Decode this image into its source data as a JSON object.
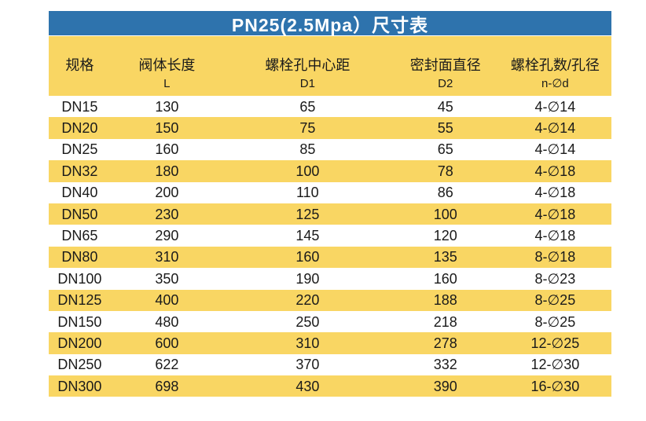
{
  "title_bar": {
    "text": "PN25(2.5Mpa）尺寸表"
  },
  "colors": {
    "title_bg": "#2e73ad",
    "title_text": "#ffffff",
    "stripe": "#f9d663",
    "row_white": "#ffffff",
    "text": "#1a1a1a",
    "page_bg": "#ffffff"
  },
  "table": {
    "columns": [
      {
        "label": "规格",
        "sub": ""
      },
      {
        "label": "阀体长度",
        "sub": "L"
      },
      {
        "label": "螺栓孔中心距",
        "sub": "D1"
      },
      {
        "label": "密封面直径",
        "sub": "D2"
      },
      {
        "label": "螺栓孔数/孔径",
        "sub": "n-∅d"
      }
    ],
    "rows": [
      [
        "DN15",
        "130",
        "65",
        "45",
        "4-∅14"
      ],
      [
        "DN20",
        "150",
        "75",
        "55",
        "4-∅14"
      ],
      [
        "DN25",
        "160",
        "85",
        "65",
        "4-∅14"
      ],
      [
        "DN32",
        "180",
        "100",
        "78",
        "4-∅18"
      ],
      [
        "DN40",
        "200",
        "110",
        "86",
        "4-∅18"
      ],
      [
        "DN50",
        "230",
        "125",
        "100",
        "4-∅18"
      ],
      [
        "DN65",
        "290",
        "145",
        "120",
        "4-∅18"
      ],
      [
        "DN80",
        "310",
        "160",
        "135",
        "8-∅18"
      ],
      [
        "DN100",
        "350",
        "190",
        "160",
        "8-∅23"
      ],
      [
        "DN125",
        "400",
        "220",
        "188",
        "8-∅25"
      ],
      [
        "DN150",
        "480",
        "250",
        "218",
        "8-∅25"
      ],
      [
        "DN200",
        "600",
        "310",
        "278",
        "12-∅25"
      ],
      [
        "DN250",
        "622",
        "370",
        "332",
        "12-∅30"
      ],
      [
        "DN300",
        "698",
        "430",
        "390",
        "16-∅30"
      ]
    ]
  },
  "chart_data": {
    "type": "table",
    "title": "PN25(2.5Mpa）尺寸表",
    "columns": [
      "规格",
      "阀体长度 L",
      "螺栓孔中心距 D1",
      "密封面直径 D2",
      "螺栓孔数/孔径 n-∅d"
    ],
    "rows": [
      [
        "DN15",
        130,
        65,
        45,
        "4-∅14"
      ],
      [
        "DN20",
        150,
        75,
        55,
        "4-∅14"
      ],
      [
        "DN25",
        160,
        85,
        65,
        "4-∅14"
      ],
      [
        "DN32",
        180,
        100,
        78,
        "4-∅18"
      ],
      [
        "DN40",
        200,
        110,
        86,
        "4-∅18"
      ],
      [
        "DN50",
        230,
        125,
        100,
        "4-∅18"
      ],
      [
        "DN65",
        290,
        145,
        120,
        "4-∅18"
      ],
      [
        "DN80",
        310,
        160,
        135,
        "8-∅18"
      ],
      [
        "DN100",
        350,
        190,
        160,
        "8-∅23"
      ],
      [
        "DN125",
        400,
        220,
        188,
        "8-∅25"
      ],
      [
        "DN150",
        480,
        250,
        218,
        "8-∅25"
      ],
      [
        "DN200",
        600,
        310,
        278,
        "12-∅25"
      ],
      [
        "DN250",
        622,
        370,
        332,
        "12-∅30"
      ],
      [
        "DN300",
        698,
        430,
        390,
        "16-∅30"
      ]
    ]
  }
}
